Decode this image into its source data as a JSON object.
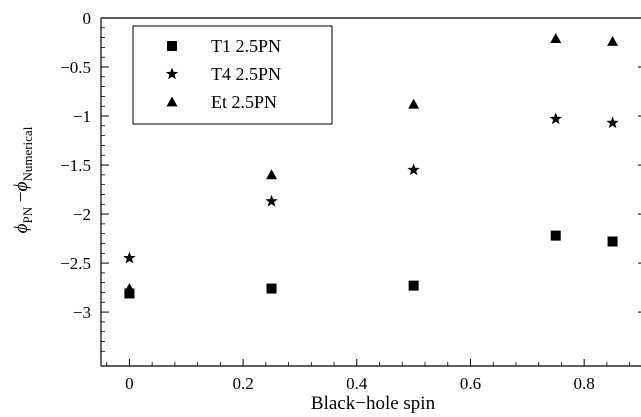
{
  "chart_data": {
    "type": "scatter",
    "xlabel": "Black−hole spin",
    "ylabel": {
      "lead": "ϕ",
      "lead_sub": "PN",
      "minus": " −",
      "trail": "ϕ",
      "trail_sub": "Numerical"
    },
    "xlim": [
      -0.05,
      0.9
    ],
    "ylim": [
      -3.55,
      0
    ],
    "x_ticks": [
      0,
      0.2,
      0.4,
      0.6,
      0.8
    ],
    "x_tick_labels": [
      "0",
      "0.2",
      "0.4",
      "0.6",
      "0.8"
    ],
    "y_ticks": [
      0,
      -0.5,
      -1,
      -1.5,
      -2,
      -2.5,
      -3
    ],
    "y_tick_labels": [
      "0",
      "−0.5",
      "−1",
      "−1.5",
      "−2",
      "−2.5",
      "−3"
    ],
    "grid": false,
    "legend_position": "top-left",
    "series": [
      {
        "name": "T1 2.5PN",
        "marker": "square",
        "x": [
          0,
          0.25,
          0.5,
          0.75,
          0.85
        ],
        "y": [
          -2.81,
          -2.76,
          -2.73,
          -2.22,
          -2.28
        ]
      },
      {
        "name": "T4 2.5PN",
        "marker": "star",
        "x": [
          0,
          0.25,
          0.5,
          0.75,
          0.85
        ],
        "y": [
          -2.45,
          -1.87,
          -1.55,
          -1.03,
          -1.07
        ]
      },
      {
        "name": "Et 2.5PN",
        "marker": "triangle",
        "x": [
          0,
          0.25,
          0.5,
          0.75,
          0.85
        ],
        "y": [
          -2.76,
          -1.6,
          -0.88,
          -0.21,
          -0.24
        ]
      }
    ]
  }
}
